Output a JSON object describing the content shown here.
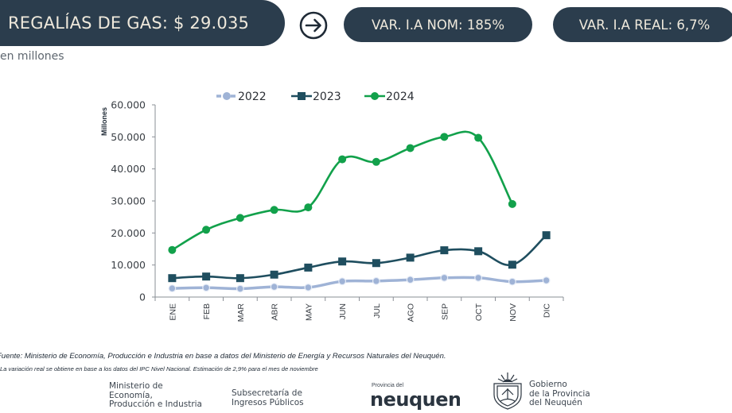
{
  "header": {
    "title": "REGALÍAS DE GAS: $ 29.035",
    "arrow_icon": "arrow-right-circle-icon",
    "var_nominal": "VAR. I.A NOM: 185%",
    "var_real": "VAR. I.A REAL: 6,7%",
    "subtitle": "en millones"
  },
  "colors": {
    "pill_bg": "#2b3d4d",
    "pill_text": "#efe9dc",
    "series_2022": "#9fb3d6",
    "series_2023": "#1f4e5f",
    "series_2024": "#12a14b"
  },
  "chart_data": {
    "type": "line",
    "title": "",
    "xlabel": "",
    "ylabel": "Millones",
    "ylim": [
      0,
      60000
    ],
    "yticks": [
      "0",
      "10.000",
      "20.000",
      "30.000",
      "40.000",
      "50.000",
      "60.000"
    ],
    "categories": [
      "ENE",
      "FEB",
      "MAR",
      "ABR",
      "MAY",
      "JUN",
      "JUL",
      "AGO",
      "SEP",
      "OCT",
      "NOV",
      "DIC"
    ],
    "legend_position": "top",
    "grid": false,
    "series": [
      {
        "name": "2022",
        "marker": "circle",
        "values": [
          2700,
          2900,
          2600,
          3200,
          3000,
          4900,
          5000,
          5400,
          6000,
          6000,
          4800,
          5200
        ]
      },
      {
        "name": "2023",
        "marker": "square",
        "values": [
          5900,
          6400,
          5900,
          7000,
          9200,
          11100,
          10600,
          12300,
          14600,
          14300,
          10100,
          19300
        ]
      },
      {
        "name": "2024",
        "marker": "circle",
        "values": [
          14700,
          21000,
          24700,
          27200,
          28000,
          43000,
          42200,
          46500,
          50000,
          49700,
          29035,
          null
        ]
      }
    ]
  },
  "footer": {
    "source": "Fuente: Ministerio de Economía, Producción e Industria en base a datos del Ministerio de Energía y  Recursos Naturales del Neuquén.",
    "note": "La variación real se obtiene en base a los datos del IPC Nivel Nacional. Estimación de 2,9% para el mes de noviembre",
    "ministerio_l1": "Ministerio de",
    "ministerio_l2": "Economía,",
    "ministerio_l3": "Producción e Industria",
    "subsecretaria_l1": "Subsecretaría de",
    "subsecretaria_l2": "Ingresos Públicos",
    "provincia_small": "Provincia del",
    "neuquen_logo": "neuquen",
    "gobierno_l1": "Gobierno",
    "gobierno_l2": "de la Provincia",
    "gobierno_l3": "del Neuquén"
  }
}
